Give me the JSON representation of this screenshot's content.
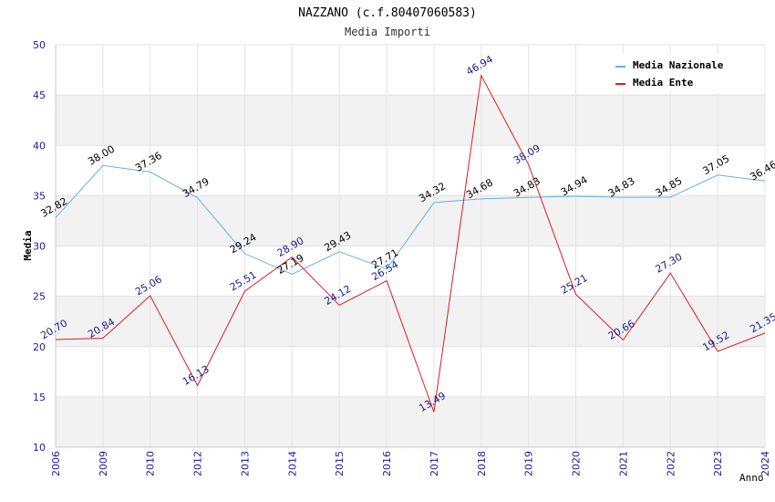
{
  "chart_data": {
    "type": "line",
    "title": "NAZZANO (c.f.80407060583)",
    "subtitle": "Media Importi",
    "xlabel": "Anno",
    "ylabel": "Media",
    "ylim": [
      10,
      50
    ],
    "yticks": [
      "10",
      "15",
      "20",
      "25",
      "30",
      "35",
      "40",
      "45",
      "50"
    ],
    "categories": [
      "2006",
      "2009",
      "2010",
      "2012",
      "2013",
      "2014",
      "2015",
      "2016",
      "2017",
      "2018",
      "2019",
      "2020",
      "2021",
      "2022",
      "2023",
      "2024"
    ],
    "grid": true,
    "legend_position": "top-right",
    "series": [
      {
        "name": "Media Nazionale",
        "color": "#6aaee8",
        "label_color": "#000000",
        "values": [
          32.82,
          38.0,
          37.36,
          34.79,
          29.24,
          27.19,
          29.43,
          27.71,
          34.32,
          34.68,
          34.83,
          34.94,
          34.83,
          34.85,
          37.05,
          36.46
        ],
        "labels": [
          "32.82",
          "38.00",
          "37.36",
          "34.79",
          "29.24",
          "27.19",
          "29.43",
          "27.71",
          "34.32",
          "34.68",
          "34.83",
          "34.94",
          "34.83",
          "34.85",
          "37.05",
          "36.46"
        ]
      },
      {
        "name": "Media Ente",
        "color": "#e31a1c",
        "label_color": "#1a1a8c",
        "values": [
          20.7,
          20.84,
          25.06,
          16.13,
          25.51,
          28.9,
          24.12,
          26.54,
          13.49,
          46.94,
          38.09,
          25.21,
          20.66,
          27.3,
          19.52,
          21.35
        ],
        "labels": [
          "20.70",
          "20.84",
          "25.06",
          "16.13",
          "25.51",
          "28.90",
          "24.12",
          "26.54",
          "13.49",
          "46.94",
          "38.09",
          "25.21",
          "20.66",
          "27.30",
          "19.52",
          "21.35"
        ]
      }
    ]
  }
}
